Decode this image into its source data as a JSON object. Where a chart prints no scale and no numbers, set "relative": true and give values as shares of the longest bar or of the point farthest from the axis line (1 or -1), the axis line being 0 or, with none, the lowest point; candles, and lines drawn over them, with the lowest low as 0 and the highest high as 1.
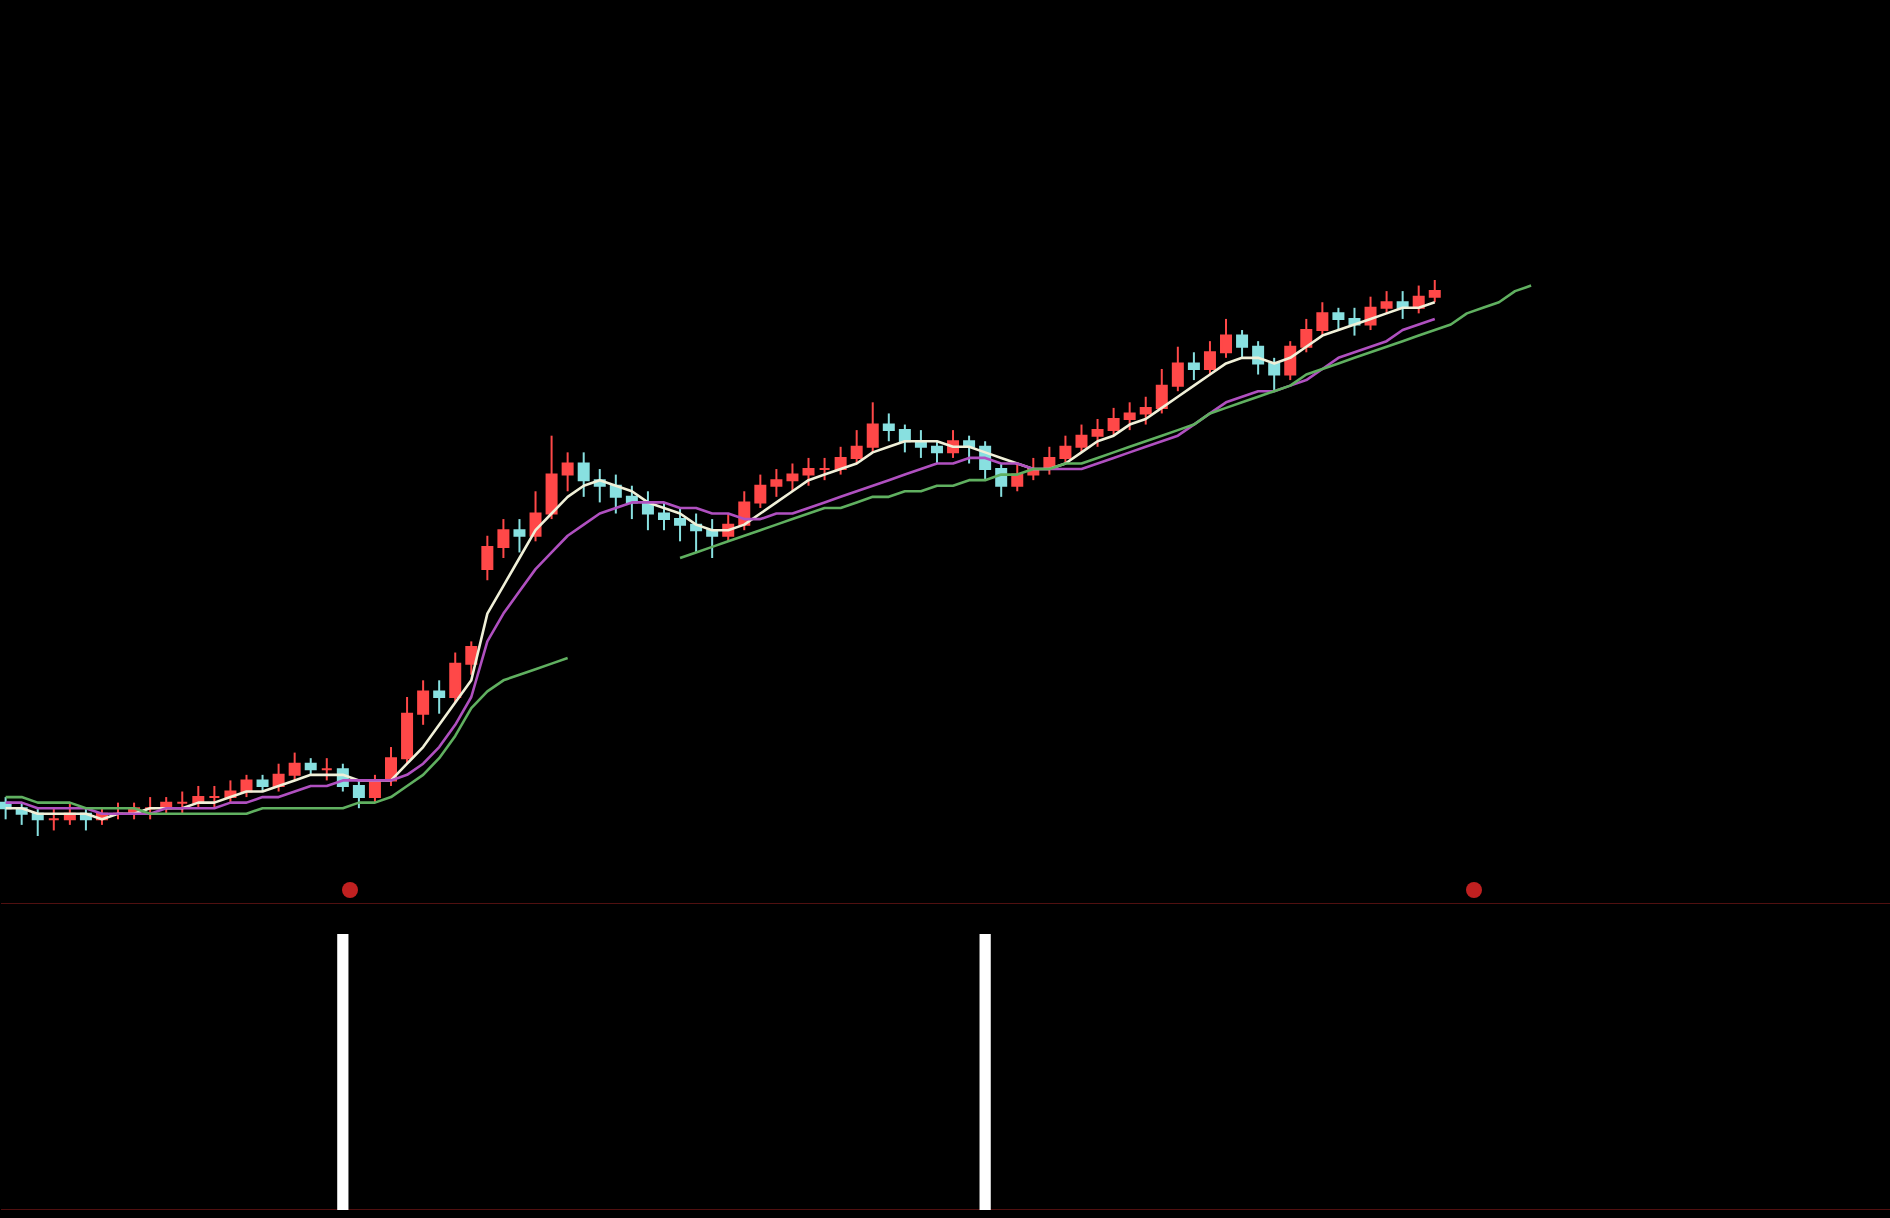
{
  "chart_data": [
    {
      "type": "candlestick",
      "relative": true,
      "categories": [
        null,
        null,
        null,
        null,
        null,
        null,
        null,
        null,
        null,
        null,
        null,
        null,
        null,
        null,
        null,
        null,
        null,
        null,
        null,
        null,
        null,
        null,
        null,
        null,
        null,
        null,
        null,
        null,
        null,
        null,
        null,
        null,
        null,
        null,
        null,
        null,
        null,
        null,
        null,
        null,
        null,
        null,
        null,
        null,
        null,
        null,
        null,
        null,
        null,
        null,
        null,
        null,
        null,
        null,
        null,
        null,
        null,
        null,
        null,
        null,
        null,
        null,
        null,
        null,
        null,
        null,
        null,
        null,
        null,
        null,
        null,
        null,
        null,
        null,
        null,
        null,
        null,
        null,
        null,
        null,
        null,
        null,
        null,
        null,
        null,
        null,
        null,
        null,
        null,
        null,
        null,
        null,
        null,
        null,
        null,
        null,
        null,
        null,
        null,
        null,
        null,
        null,
        null,
        null,
        null,
        null,
        null,
        null,
        null,
        null,
        null,
        null,
        null,
        null,
        null,
        null,
        null,
        null
      ],
      "ohlc": [
        [
          0.06,
          0.07,
          0.03,
          0.05
        ],
        [
          0.05,
          0.06,
          0.02,
          0.04
        ],
        [
          0.04,
          0.05,
          0.0,
          0.03
        ],
        [
          0.03,
          0.05,
          0.01,
          0.03
        ],
        [
          0.03,
          0.06,
          0.02,
          0.04
        ],
        [
          0.04,
          0.05,
          0.01,
          0.03
        ],
        [
          0.03,
          0.05,
          0.02,
          0.04
        ],
        [
          0.04,
          0.06,
          0.03,
          0.04
        ],
        [
          0.04,
          0.06,
          0.03,
          0.05
        ],
        [
          0.05,
          0.07,
          0.03,
          0.05
        ],
        [
          0.05,
          0.07,
          0.04,
          0.06
        ],
        [
          0.06,
          0.08,
          0.04,
          0.06
        ],
        [
          0.06,
          0.09,
          0.05,
          0.07
        ],
        [
          0.07,
          0.09,
          0.05,
          0.07
        ],
        [
          0.07,
          0.1,
          0.06,
          0.08
        ],
        [
          0.08,
          0.11,
          0.07,
          0.1
        ],
        [
          0.1,
          0.11,
          0.08,
          0.09
        ],
        [
          0.09,
          0.13,
          0.08,
          0.11
        ],
        [
          0.11,
          0.15,
          0.1,
          0.13
        ],
        [
          0.13,
          0.14,
          0.11,
          0.12
        ],
        [
          0.12,
          0.14,
          0.1,
          0.12
        ],
        [
          0.12,
          0.13,
          0.08,
          0.09
        ],
        [
          0.09,
          0.1,
          0.05,
          0.07
        ],
        [
          0.07,
          0.11,
          0.06,
          0.1
        ],
        [
          0.1,
          0.16,
          0.09,
          0.14
        ],
        [
          0.14,
          0.25,
          0.13,
          0.22
        ],
        [
          0.22,
          0.28,
          0.2,
          0.26
        ],
        [
          0.26,
          0.28,
          0.22,
          0.25
        ],
        [
          0.25,
          0.33,
          0.24,
          0.31
        ],
        [
          0.31,
          0.35,
          0.29,
          0.34
        ],
        [
          0.48,
          0.54,
          0.46,
          0.52
        ],
        [
          0.52,
          0.57,
          0.5,
          0.55
        ],
        [
          0.55,
          0.57,
          0.51,
          0.54
        ],
        [
          0.54,
          0.62,
          0.53,
          0.58
        ],
        [
          0.58,
          0.72,
          0.57,
          0.65
        ],
        [
          0.65,
          0.69,
          0.62,
          0.67
        ],
        [
          0.67,
          0.69,
          0.61,
          0.64
        ],
        [
          0.64,
          0.66,
          0.6,
          0.63
        ],
        [
          0.63,
          0.65,
          0.58,
          0.61
        ],
        [
          0.61,
          0.63,
          0.57,
          0.6
        ],
        [
          0.6,
          0.62,
          0.55,
          0.58
        ],
        [
          0.58,
          0.6,
          0.55,
          0.57
        ],
        [
          0.57,
          0.59,
          0.53,
          0.56
        ],
        [
          0.56,
          0.58,
          0.51,
          0.55
        ],
        [
          0.55,
          0.57,
          0.5,
          0.54
        ],
        [
          0.54,
          0.58,
          0.53,
          0.56
        ],
        [
          0.56,
          0.62,
          0.55,
          0.6
        ],
        [
          0.6,
          0.65,
          0.59,
          0.63
        ],
        [
          0.63,
          0.66,
          0.61,
          0.64
        ],
        [
          0.64,
          0.67,
          0.62,
          0.65
        ],
        [
          0.65,
          0.68,
          0.63,
          0.66
        ],
        [
          0.66,
          0.68,
          0.64,
          0.66
        ],
        [
          0.66,
          0.7,
          0.65,
          0.68
        ],
        [
          0.68,
          0.73,
          0.67,
          0.7
        ],
        [
          0.7,
          0.78,
          0.69,
          0.74
        ],
        [
          0.74,
          0.76,
          0.71,
          0.73
        ],
        [
          0.73,
          0.74,
          0.69,
          0.71
        ],
        [
          0.71,
          0.73,
          0.68,
          0.7
        ],
        [
          0.7,
          0.71,
          0.67,
          0.69
        ],
        [
          0.69,
          0.73,
          0.68,
          0.71
        ],
        [
          0.71,
          0.72,
          0.67,
          0.7
        ],
        [
          0.7,
          0.71,
          0.64,
          0.66
        ],
        [
          0.66,
          0.67,
          0.61,
          0.63
        ],
        [
          0.63,
          0.67,
          0.62,
          0.65
        ],
        [
          0.65,
          0.68,
          0.64,
          0.66
        ],
        [
          0.66,
          0.7,
          0.65,
          0.68
        ],
        [
          0.68,
          0.72,
          0.67,
          0.7
        ],
        [
          0.7,
          0.74,
          0.69,
          0.72
        ],
        [
          0.72,
          0.75,
          0.7,
          0.73
        ],
        [
          0.73,
          0.77,
          0.72,
          0.75
        ],
        [
          0.75,
          0.78,
          0.73,
          0.76
        ],
        [
          0.76,
          0.79,
          0.74,
          0.77
        ],
        [
          0.77,
          0.84,
          0.76,
          0.81
        ],
        [
          0.81,
          0.88,
          0.8,
          0.85
        ],
        [
          0.85,
          0.87,
          0.82,
          0.84
        ],
        [
          0.84,
          0.89,
          0.83,
          0.87
        ],
        [
          0.87,
          0.93,
          0.86,
          0.9
        ],
        [
          0.9,
          0.91,
          0.86,
          0.88
        ],
        [
          0.88,
          0.89,
          0.83,
          0.85
        ],
        [
          0.85,
          0.86,
          0.8,
          0.83
        ],
        [
          0.83,
          0.89,
          0.82,
          0.88
        ],
        [
          0.88,
          0.93,
          0.87,
          0.91
        ],
        [
          0.91,
          0.96,
          0.9,
          0.94
        ],
        [
          0.94,
          0.95,
          0.91,
          0.93
        ],
        [
          0.93,
          0.95,
          0.9,
          0.92
        ],
        [
          0.92,
          0.97,
          0.91,
          0.95
        ],
        [
          0.95,
          0.98,
          0.94,
          0.96
        ],
        [
          0.96,
          0.98,
          0.93,
          0.95
        ],
        [
          0.95,
          0.99,
          0.94,
          0.97
        ],
        [
          0.97,
          1.0,
          0.96,
          0.98
        ],
        null,
        null,
        null,
        null,
        null,
        null,
        null,
        null,
        null,
        null,
        null,
        null,
        null,
        null,
        null,
        null,
        null,
        null,
        null,
        null,
        null,
        null,
        null,
        null,
        null,
        null,
        null,
        null
      ],
      "series": [
        {
          "type": "line",
          "color": "#f0f0d8",
          "values": [
            0.05,
            0.05,
            0.04,
            0.04,
            0.04,
            0.04,
            0.03,
            0.04,
            0.04,
            0.05,
            0.05,
            0.05,
            0.06,
            0.06,
            0.07,
            0.08,
            0.08,
            0.09,
            0.1,
            0.11,
            0.11,
            0.11,
            0.1,
            0.1,
            0.1,
            0.13,
            0.16,
            0.2,
            0.24,
            0.28,
            0.4,
            0.45,
            0.5,
            0.55,
            0.58,
            0.61,
            0.63,
            0.64,
            0.63,
            0.62,
            0.6,
            0.59,
            0.58,
            0.56,
            0.55,
            0.55,
            0.56,
            0.58,
            0.6,
            0.62,
            0.64,
            0.65,
            0.66,
            0.67,
            0.69,
            0.7,
            0.71,
            0.71,
            0.71,
            0.7,
            0.7,
            0.69,
            0.68,
            0.67,
            0.66,
            0.66,
            0.67,
            0.69,
            0.71,
            0.72,
            0.74,
            0.75,
            0.77,
            0.79,
            0.81,
            0.83,
            0.85,
            0.86,
            0.86,
            0.85,
            0.86,
            0.88,
            0.9,
            0.91,
            0.92,
            0.93,
            0.94,
            0.95,
            0.95,
            0.96,
            null,
            null,
            null,
            null,
            null,
            null,
            null,
            null,
            null,
            null,
            null,
            null,
            null,
            null,
            null,
            null,
            null,
            null,
            null,
            null,
            null,
            null,
            null,
            null,
            null,
            null,
            null,
            null
          ]
        },
        {
          "type": "line",
          "color": "#b050c0",
          "values": [
            0.06,
            0.06,
            0.05,
            0.05,
            0.05,
            0.05,
            0.04,
            0.04,
            0.04,
            0.04,
            0.05,
            0.05,
            0.05,
            0.05,
            0.06,
            0.06,
            0.07,
            0.07,
            0.08,
            0.09,
            0.09,
            0.1,
            0.1,
            0.1,
            0.1,
            0.11,
            0.13,
            0.16,
            0.2,
            0.25,
            0.35,
            0.4,
            0.44,
            0.48,
            0.51,
            0.54,
            0.56,
            0.58,
            0.59,
            0.6,
            0.6,
            0.6,
            0.59,
            0.59,
            0.58,
            0.58,
            0.57,
            0.57,
            0.58,
            0.58,
            0.59,
            0.6,
            0.61,
            0.62,
            0.63,
            0.64,
            0.65,
            0.66,
            0.67,
            0.67,
            0.68,
            0.68,
            0.67,
            0.67,
            0.66,
            0.66,
            0.66,
            0.66,
            0.67,
            0.68,
            0.69,
            0.7,
            0.71,
            0.72,
            0.74,
            0.76,
            0.78,
            0.79,
            0.8,
            0.8,
            0.81,
            0.82,
            0.84,
            0.86,
            0.87,
            0.88,
            0.89,
            0.91,
            0.92,
            0.93,
            null,
            null,
            null,
            null,
            null,
            null,
            null,
            null,
            null,
            null,
            null,
            null,
            null,
            null,
            null,
            null,
            null,
            null,
            null,
            null,
            null,
            null,
            null,
            null,
            null,
            null,
            null,
            null
          ]
        },
        {
          "type": "line",
          "color": "#60b060",
          "values": [
            0.07,
            0.07,
            0.06,
            0.06,
            0.06,
            0.05,
            0.05,
            0.05,
            0.05,
            0.04,
            0.04,
            0.04,
            0.04,
            0.04,
            0.04,
            0.04,
            0.05,
            0.05,
            0.05,
            0.05,
            0.05,
            0.05,
            0.06,
            0.06,
            0.07,
            0.09,
            0.11,
            0.14,
            0.18,
            0.23,
            0.26,
            0.28,
            0.29,
            0.3,
            0.31,
            0.32,
            null,
            null,
            null,
            null,
            null,
            null,
            0.5,
            0.51,
            0.52,
            0.53,
            0.54,
            0.55,
            0.56,
            0.57,
            0.58,
            0.59,
            0.59,
            0.6,
            0.61,
            0.61,
            0.62,
            0.62,
            0.63,
            0.63,
            0.64,
            0.64,
            0.65,
            0.65,
            0.66,
            0.66,
            0.67,
            0.67,
            0.68,
            0.69,
            0.7,
            0.71,
            0.72,
            0.73,
            0.74,
            0.76,
            0.77,
            0.78,
            0.79,
            0.8,
            0.81,
            0.83,
            0.84,
            0.85,
            0.86,
            0.87,
            0.88,
            0.89,
            0.9,
            0.91,
            0.92,
            0.94,
            0.95,
            0.96,
            0.98,
            0.99,
            null,
            null,
            null,
            null,
            null,
            null,
            null,
            null,
            null,
            null,
            null,
            null,
            null,
            null,
            null,
            null,
            null,
            null,
            null,
            null,
            null,
            null
          ]
        }
      ]
    },
    {
      "type": "bar",
      "relative": true,
      "color": "#ffffff",
      "categories": [
        null,
        null,
        null,
        null,
        null,
        null,
        null,
        null,
        null,
        null,
        null,
        null,
        null,
        null,
        null,
        null,
        null,
        null,
        null,
        null,
        null,
        null,
        null,
        null,
        null,
        null,
        null,
        null,
        null,
        null,
        null,
        null,
        null,
        null,
        null,
        null,
        null,
        null,
        null,
        null,
        null,
        null,
        null,
        null,
        null,
        null,
        null,
        null,
        null,
        null,
        null,
        null,
        null,
        null,
        null,
        null,
        null,
        null,
        null,
        null,
        null,
        null,
        null,
        null,
        null,
        null,
        null,
        null,
        null,
        null,
        null,
        null,
        null,
        null,
        null,
        null,
        null,
        null,
        null,
        null,
        null,
        null,
        null,
        null,
        null,
        null,
        null,
        null,
        null,
        null,
        null,
        null,
        null,
        null,
        null,
        null,
        null,
        null,
        null,
        null,
        null,
        null,
        null,
        null,
        null,
        null,
        null,
        null,
        null,
        null,
        null,
        null,
        null,
        null,
        null,
        null,
        null,
        null
      ],
      "values": [
        null,
        null,
        null,
        null,
        null,
        null,
        null,
        null,
        null,
        null,
        null,
        null,
        null,
        null,
        null,
        null,
        null,
        null,
        null,
        null,
        null,
        1,
        null,
        null,
        null,
        null,
        null,
        null,
        null,
        null,
        null,
        null,
        null,
        null,
        null,
        null,
        null,
        null,
        null,
        null,
        null,
        null,
        null,
        null,
        null,
        null,
        null,
        null,
        null,
        null,
        null,
        null,
        null,
        null,
        null,
        null,
        null,
        null,
        null,
        null,
        null,
        1,
        null,
        null,
        null,
        null,
        null,
        null,
        null,
        null,
        null,
        null,
        null,
        null,
        null,
        null,
        null,
        null,
        null,
        null,
        null,
        null,
        null,
        null,
        null,
        null,
        null,
        null,
        null,
        null,
        null,
        null,
        null,
        null,
        null,
        null,
        null,
        null,
        null,
        null,
        null,
        null,
        null,
        null,
        null,
        null,
        null,
        null,
        null,
        null,
        null,
        null,
        null,
        null,
        null,
        null,
        null,
        null
      ]
    }
  ]
}
